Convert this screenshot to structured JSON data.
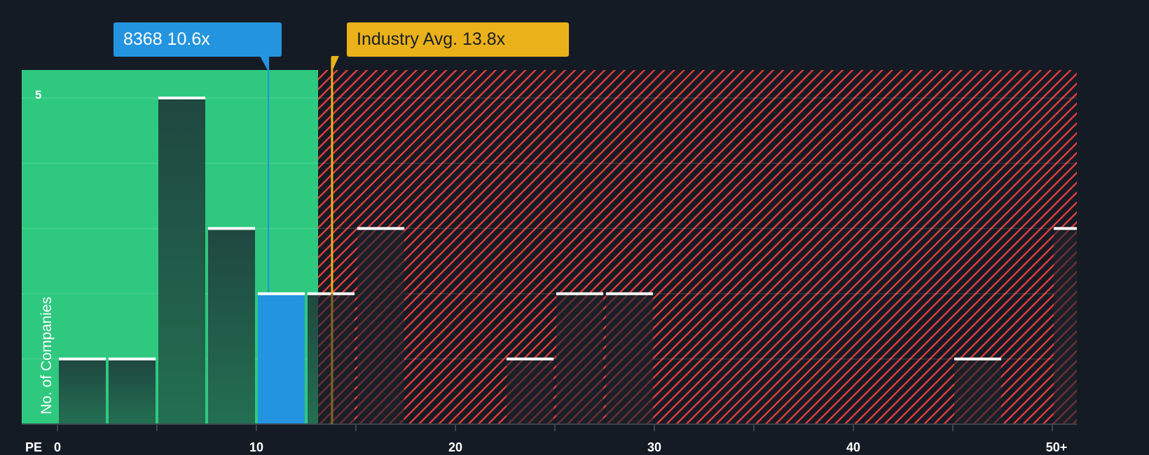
{
  "chart_data": {
    "type": "bar",
    "title": "",
    "xlabel": "PE",
    "ylabel": "No. of Companies",
    "bin_width": 2.5,
    "categories": [
      "0-2.5",
      "2.5-5",
      "5-7.5",
      "7.5-10",
      "10-12.5",
      "12.5-15",
      "15-17.5",
      "17.5-20",
      "20-22.5",
      "22.5-25",
      "25-27.5",
      "27.5-30",
      "30-32.5",
      "32.5-35",
      "35-37.5",
      "37.5-40",
      "40-42.5",
      "42.5-45",
      "45-47.5",
      "47.5-50",
      "50+"
    ],
    "bin_starts": [
      0,
      2.5,
      5,
      7.5,
      10,
      12.5,
      15,
      17.5,
      20,
      22.5,
      25,
      27.5,
      30,
      32.5,
      35,
      37.5,
      40,
      42.5,
      45,
      47.5,
      50
    ],
    "values": [
      1,
      1,
      5,
      3,
      2,
      2,
      3,
      0,
      0,
      1,
      2,
      2,
      0,
      0,
      0,
      0,
      0,
      0,
      1,
      0,
      3
    ],
    "highlight_bin_index": 4,
    "x_ticks": [
      0,
      10,
      20,
      30,
      40,
      "50+"
    ],
    "y_ticks_labeled": [
      5
    ],
    "ylim": [
      0,
      5.2
    ],
    "xlim": [
      -1.8,
      51.3
    ],
    "grid": true,
    "annotations": [
      {
        "label": "8368 10.6x",
        "value": 10.6,
        "color": "#2394df"
      },
      {
        "label": "Industry Avg. 13.8x",
        "value": 13.8,
        "color": "#eab11a"
      }
    ],
    "regions": [
      {
        "name": "undervalued",
        "from": -1.8,
        "to": 13.1,
        "color": "#2ec97f"
      },
      {
        "name": "overvalued",
        "from": 13.1,
        "to": 51.3,
        "color": "#e23d3d",
        "pattern": "diagonal-hatch"
      }
    ]
  },
  "labels": {
    "company": "8368 10.6x",
    "industry": "Industry Avg. 13.8x",
    "x_axis_title": "PE",
    "y_axis_title": "No. of Companies",
    "y_tick_5": "5",
    "x_ticks": [
      "0",
      "10",
      "20",
      "30",
      "40",
      "50+"
    ]
  },
  "colors": {
    "background": "#151b24",
    "green_zone": "#2ec97f",
    "red_hatch": "#e23d3d",
    "company": "#2394df",
    "industry": "#eab11a",
    "bar_dark": "#1f4a3e",
    "bar_cap": "#ffffff"
  }
}
